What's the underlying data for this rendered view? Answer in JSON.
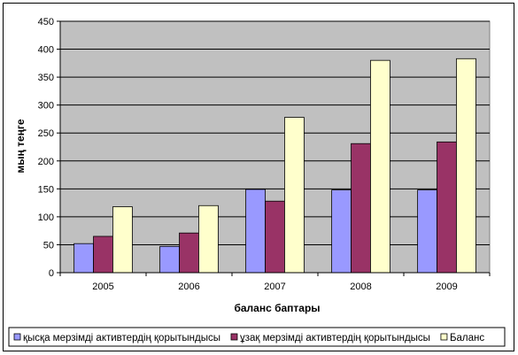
{
  "chart_data": {
    "type": "bar",
    "categories": [
      "2005",
      "2006",
      "2007",
      "2008",
      "2009"
    ],
    "series": [
      {
        "name": "қысқа мерзімді активтердің қорытындысы",
        "values": [
          52,
          47,
          149,
          148,
          148
        ],
        "color": "#9999ff"
      },
      {
        "name": "ұзақ мерзімді активтердің қорытындысы",
        "values": [
          65,
          71,
          128,
          231,
          234
        ],
        "color": "#993366"
      },
      {
        "name": "Баланс",
        "values": [
          118,
          120,
          278,
          380,
          383
        ],
        "color": "#ffffcc"
      }
    ],
    "title": "",
    "xlabel": "баланс баптары",
    "ylabel": "мың теңге",
    "ylim": [
      0,
      450
    ],
    "yticks": [
      0,
      50,
      100,
      150,
      200,
      250,
      300,
      350,
      400,
      450
    ],
    "grid": true,
    "legend": "bottom",
    "plot_background": "#c0c0c0"
  }
}
